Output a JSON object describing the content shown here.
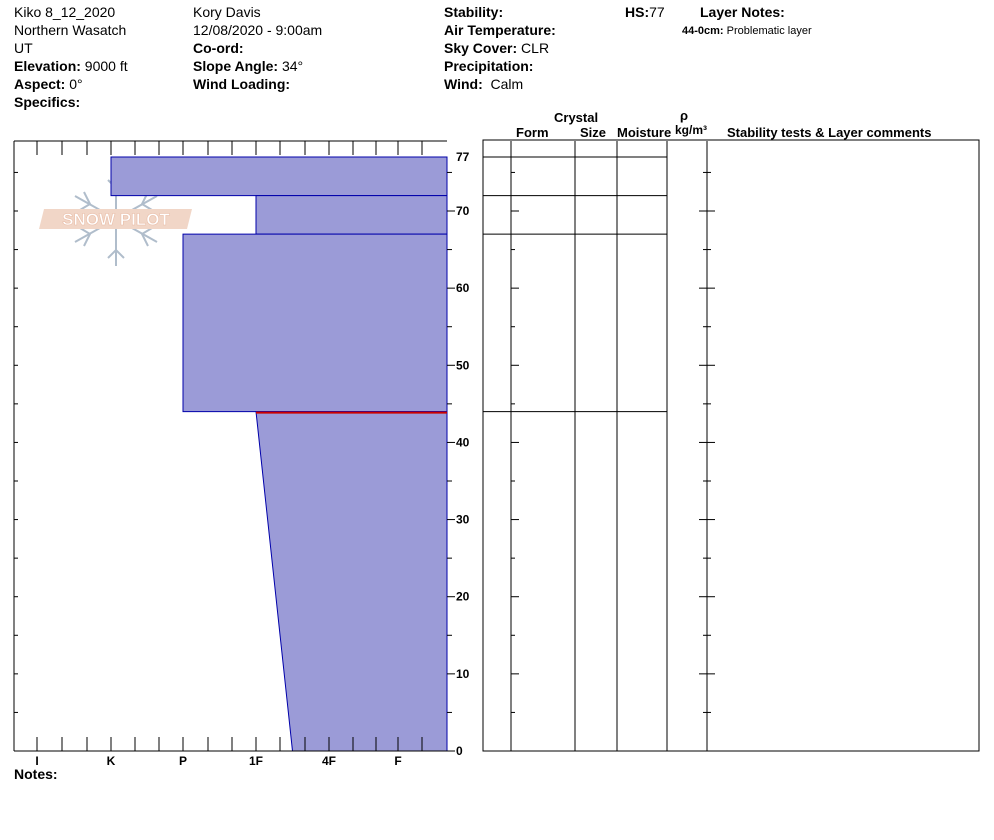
{
  "header": {
    "col1": {
      "location": "Kiko 8_12_2020",
      "range": "Northern Wasatch",
      "state": "UT",
      "elevation_label": "Elevation:",
      "elevation_value": "9000 ft",
      "aspect_label": "Aspect:",
      "aspect_value": "0°",
      "specifics_label": "Specifics:"
    },
    "col2": {
      "observer": "Kory Davis",
      "datetime": "12/08/2020 - 9:00am",
      "coord_label": "Co-ord:",
      "slope_label": "Slope Angle:",
      "slope_value": "34°",
      "wind_loading_label": "Wind Loading:"
    },
    "col3": {
      "stability_label": "Stability:",
      "air_temp_label": "Air Temperature:",
      "sky_cover_label": "Sky Cover:",
      "sky_cover_value": "CLR",
      "precip_label": "Precipitation:",
      "wind_label": "Wind:",
      "wind_value": "Calm"
    },
    "hs_label": "HS:",
    "hs_value": "77",
    "layer_notes_label": "Layer Notes:",
    "layer_note_depth": "44-0cm:",
    "layer_note_text": "Problematic layer"
  },
  "logo": {
    "text": "SNOW PILOT"
  },
  "table_headers": {
    "crystal": "Crystal",
    "form": "Form",
    "size": "Size",
    "moisture": "Moisture",
    "rho": "ρ",
    "density_unit": "kg/m³",
    "comments": "Stability tests & Layer comments"
  },
  "notes_label": "Notes:",
  "colors": {
    "layer_fill": "#9b9bd7",
    "layer_stroke": "#0000aa",
    "problem_line": "#cc0000"
  },
  "chart_data": {
    "type": "snow-profile-hardness",
    "x_categories": [
      "I",
      "K",
      "P",
      "1F",
      "4F",
      "F"
    ],
    "y_ticks": [
      0,
      10,
      20,
      30,
      40,
      50,
      60,
      70,
      77
    ],
    "ylim": [
      0,
      77
    ],
    "total_height_cm": 77,
    "layers": [
      {
        "top": 77,
        "bottom": 72,
        "hardness_top": "K",
        "hardness_bottom": "K"
      },
      {
        "top": 72,
        "bottom": 67,
        "hardness_top": "1F",
        "hardness_bottom": "1F"
      },
      {
        "top": 67,
        "bottom": 44,
        "hardness_top": "P",
        "hardness_bottom": "P"
      },
      {
        "top": 44,
        "bottom": 0,
        "hardness_top": "1F",
        "hardness_bottom": "1F-4F"
      }
    ],
    "problematic_layer_top": 44
  }
}
